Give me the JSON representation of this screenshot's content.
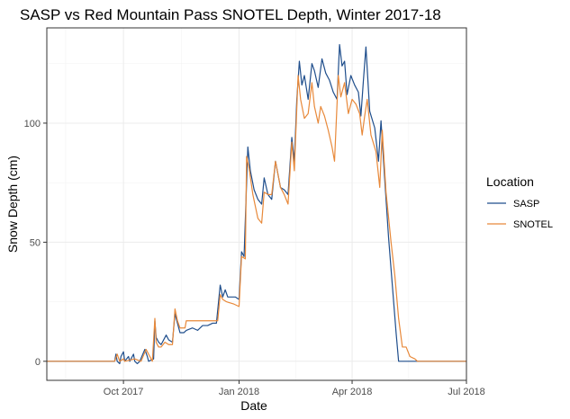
{
  "chart_data": {
    "type": "line",
    "title": "SASP vs Red Mountain Pass SNOTEL Depth, Winter 2017-18",
    "xlabel": "Date",
    "ylabel": "Snow Depth (cm)",
    "xlim": [
      "2017-08-01",
      "2018-07-01"
    ],
    "ylim": [
      -8,
      140
    ],
    "x_ticks": [
      {
        "date": "2017-10-01",
        "label": "Oct 2017"
      },
      {
        "date": "2018-01-01",
        "label": "Jan 2018"
      },
      {
        "date": "2018-04-01",
        "label": "Apr 2018"
      },
      {
        "date": "2018-07-01",
        "label": "Jul 2018"
      }
    ],
    "y_ticks": [
      0,
      50,
      100
    ],
    "grid": true,
    "legend": {
      "title": "Location",
      "position": "right"
    },
    "series": [
      {
        "name": "SASP",
        "color": "#1f4e8c",
        "points": [
          [
            "2017-08-01",
            0
          ],
          [
            "2017-09-24",
            0
          ],
          [
            "2017-09-25",
            3
          ],
          [
            "2017-09-26",
            0
          ],
          [
            "2017-09-28",
            -1
          ],
          [
            "2017-09-29",
            2
          ],
          [
            "2017-10-01",
            4
          ],
          [
            "2017-10-02",
            0
          ],
          [
            "2017-10-05",
            2
          ],
          [
            "2017-10-06",
            0
          ],
          [
            "2017-10-09",
            3
          ],
          [
            "2017-10-10",
            0
          ],
          [
            "2017-10-12",
            -1
          ],
          [
            "2017-10-14",
            0
          ],
          [
            "2017-10-18",
            5
          ],
          [
            "2017-10-20",
            2
          ],
          [
            "2017-10-21",
            0
          ],
          [
            "2017-10-25",
            1
          ],
          [
            "2017-10-26",
            17
          ],
          [
            "2017-10-27",
            10
          ],
          [
            "2017-10-29",
            8
          ],
          [
            "2017-10-31",
            7
          ],
          [
            "2017-11-04",
            11
          ],
          [
            "2017-11-06",
            9
          ],
          [
            "2017-11-09",
            8
          ],
          [
            "2017-11-11",
            20
          ],
          [
            "2017-11-13",
            16
          ],
          [
            "2017-11-15",
            12
          ],
          [
            "2017-11-18",
            12
          ],
          [
            "2017-11-20",
            13
          ],
          [
            "2017-11-25",
            14
          ],
          [
            "2017-11-29",
            13
          ],
          [
            "2017-12-03",
            15
          ],
          [
            "2017-12-07",
            15
          ],
          [
            "2017-12-11",
            16
          ],
          [
            "2017-12-14",
            16
          ],
          [
            "2017-12-17",
            32
          ],
          [
            "2017-12-19",
            27
          ],
          [
            "2017-12-21",
            30
          ],
          [
            "2017-12-23",
            27
          ],
          [
            "2017-12-26",
            27
          ],
          [
            "2017-12-29",
            27
          ],
          [
            "2018-01-01",
            26
          ],
          [
            "2018-01-03",
            46
          ],
          [
            "2018-01-05",
            44
          ],
          [
            "2018-01-08",
            90
          ],
          [
            "2018-01-10",
            80
          ],
          [
            "2018-01-13",
            72
          ],
          [
            "2018-01-16",
            68
          ],
          [
            "2018-01-19",
            66
          ],
          [
            "2018-01-21",
            77
          ],
          [
            "2018-01-24",
            70
          ],
          [
            "2018-01-27",
            68
          ],
          [
            "2018-01-30",
            84
          ],
          [
            "2018-02-03",
            73
          ],
          [
            "2018-02-06",
            72
          ],
          [
            "2018-02-09",
            70
          ],
          [
            "2018-02-12",
            94
          ],
          [
            "2018-02-14",
            84
          ],
          [
            "2018-02-16",
            110
          ],
          [
            "2018-02-18",
            126
          ],
          [
            "2018-02-20",
            116
          ],
          [
            "2018-02-22",
            120
          ],
          [
            "2018-02-25",
            110
          ],
          [
            "2018-02-28",
            125
          ],
          [
            "2018-03-02",
            122
          ],
          [
            "2018-03-05",
            115
          ],
          [
            "2018-03-08",
            127
          ],
          [
            "2018-03-11",
            121
          ],
          [
            "2018-03-14",
            118
          ],
          [
            "2018-03-17",
            113
          ],
          [
            "2018-03-20",
            110
          ],
          [
            "2018-03-22",
            133
          ],
          [
            "2018-03-24",
            124
          ],
          [
            "2018-03-26",
            126
          ],
          [
            "2018-03-28",
            112
          ],
          [
            "2018-03-31",
            120
          ],
          [
            "2018-04-03",
            116
          ],
          [
            "2018-04-06",
            113
          ],
          [
            "2018-04-08",
            103
          ],
          [
            "2018-04-10",
            118
          ],
          [
            "2018-04-12",
            132
          ],
          [
            "2018-04-15",
            105
          ],
          [
            "2018-04-19",
            98
          ],
          [
            "2018-04-22",
            84
          ],
          [
            "2018-04-24",
            101
          ],
          [
            "2018-04-27",
            76
          ],
          [
            "2018-04-30",
            52
          ],
          [
            "2018-05-03",
            32
          ],
          [
            "2018-05-06",
            12
          ],
          [
            "2018-05-08",
            0
          ],
          [
            "2018-07-01",
            0
          ]
        ]
      },
      {
        "name": "SNOTEL",
        "color": "#e8893a",
        "points": [
          [
            "2017-08-01",
            0
          ],
          [
            "2017-09-24",
            0
          ],
          [
            "2017-09-26",
            3
          ],
          [
            "2017-09-28",
            0
          ],
          [
            "2017-10-01",
            1
          ],
          [
            "2017-10-02",
            0
          ],
          [
            "2017-10-10",
            1
          ],
          [
            "2017-10-15",
            0
          ],
          [
            "2017-10-19",
            5
          ],
          [
            "2017-10-21",
            3
          ],
          [
            "2017-10-24",
            0
          ],
          [
            "2017-10-26",
            18
          ],
          [
            "2017-10-27",
            8
          ],
          [
            "2017-10-29",
            6
          ],
          [
            "2017-10-31",
            6
          ],
          [
            "2017-11-03",
            8
          ],
          [
            "2017-11-06",
            7
          ],
          [
            "2017-11-09",
            7
          ],
          [
            "2017-11-11",
            22
          ],
          [
            "2017-11-13",
            17
          ],
          [
            "2017-11-15",
            14
          ],
          [
            "2017-11-19",
            14
          ],
          [
            "2017-11-20",
            17
          ],
          [
            "2017-12-12",
            17
          ],
          [
            "2017-12-15",
            17
          ],
          [
            "2017-12-17",
            28
          ],
          [
            "2017-12-19",
            26
          ],
          [
            "2017-12-22",
            25
          ],
          [
            "2017-12-28",
            24
          ],
          [
            "2018-01-01",
            23
          ],
          [
            "2018-01-03",
            44
          ],
          [
            "2018-01-06",
            43
          ],
          [
            "2018-01-07",
            86
          ],
          [
            "2018-01-09",
            81
          ],
          [
            "2018-01-12",
            70
          ],
          [
            "2018-01-16",
            60
          ],
          [
            "2018-01-19",
            58
          ],
          [
            "2018-01-21",
            71
          ],
          [
            "2018-01-24",
            70
          ],
          [
            "2018-01-27",
            70
          ],
          [
            "2018-01-30",
            84
          ],
          [
            "2018-02-03",
            73
          ],
          [
            "2018-02-06",
            70
          ],
          [
            "2018-02-09",
            66
          ],
          [
            "2018-02-12",
            92
          ],
          [
            "2018-02-14",
            80
          ],
          [
            "2018-02-17",
            120
          ],
          [
            "2018-02-19",
            110
          ],
          [
            "2018-02-22",
            102
          ],
          [
            "2018-02-25",
            104
          ],
          [
            "2018-02-28",
            117
          ],
          [
            "2018-03-02",
            107
          ],
          [
            "2018-03-05",
            100
          ],
          [
            "2018-03-07",
            107
          ],
          [
            "2018-03-10",
            103
          ],
          [
            "2018-03-13",
            97
          ],
          [
            "2018-03-16",
            90
          ],
          [
            "2018-03-18",
            84
          ],
          [
            "2018-03-21",
            120
          ],
          [
            "2018-03-23",
            111
          ],
          [
            "2018-03-26",
            117
          ],
          [
            "2018-03-29",
            104
          ],
          [
            "2018-04-01",
            110
          ],
          [
            "2018-04-04",
            108
          ],
          [
            "2018-04-07",
            104
          ],
          [
            "2018-04-09",
            95
          ],
          [
            "2018-04-11",
            103
          ],
          [
            "2018-04-13",
            110
          ],
          [
            "2018-04-16",
            95
          ],
          [
            "2018-04-20",
            88
          ],
          [
            "2018-04-23",
            73
          ],
          [
            "2018-04-25",
            97
          ],
          [
            "2018-04-28",
            71
          ],
          [
            "2018-05-02",
            50
          ],
          [
            "2018-05-05",
            36
          ],
          [
            "2018-05-08",
            18
          ],
          [
            "2018-05-11",
            6
          ],
          [
            "2018-05-14",
            6
          ],
          [
            "2018-05-17",
            2
          ],
          [
            "2018-05-21",
            1
          ],
          [
            "2018-05-23",
            0
          ],
          [
            "2018-07-01",
            0
          ]
        ]
      }
    ]
  }
}
